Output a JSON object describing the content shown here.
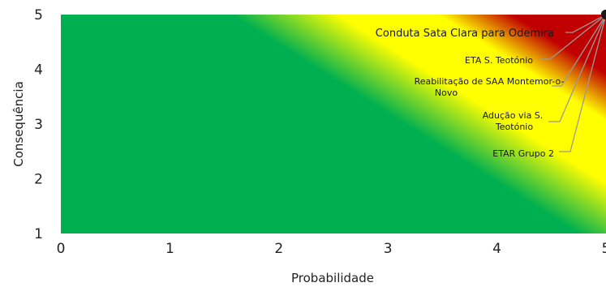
{
  "chart_data": {
    "type": "scatter",
    "title": "",
    "xlabel": "Probabilidade",
    "ylabel": "Consequência",
    "xlim": [
      0,
      5
    ],
    "ylim": [
      1,
      5
    ],
    "x_ticks": [
      "0",
      "1",
      "2",
      "3",
      "4",
      "5"
    ],
    "y_ticks": [
      "1",
      "2",
      "3",
      "4",
      "5"
    ],
    "background": "risk heat map gradient: green (low risk) to yellow to red (high risk) toward top-right",
    "colors": {
      "green": "#00b050",
      "yellow": "#ffff00",
      "red": "#c00000",
      "leader": "#999999",
      "marker": "#1a1a1a"
    },
    "points": [
      {
        "label": "Conduta Sata Clara para Odemira",
        "x": 5,
        "y": 5
      },
      {
        "label": "ETA S. Teotónio",
        "x": 5,
        "y": 5
      },
      {
        "label": "Reabilitação de SAA Montemor-o-Novo",
        "x": 5,
        "y": 5
      },
      {
        "label": "Adução via S. Teotónio",
        "x": 5,
        "y": 5
      },
      {
        "label": "ETAR Grupo 2",
        "x": 5,
        "y": 5
      }
    ]
  }
}
